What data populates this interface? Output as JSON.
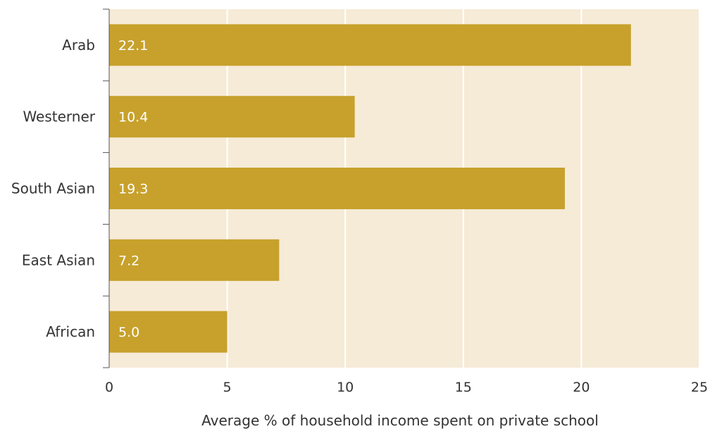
{
  "chart_data": {
    "type": "bar",
    "orientation": "horizontal",
    "categories": [
      "Arab",
      "Westerner",
      "South Asian",
      "East Asian",
      "African"
    ],
    "values": [
      22.1,
      10.4,
      19.3,
      7.2,
      5.0
    ],
    "data_labels": [
      "22.1",
      "10.4",
      "19.3",
      "7.2",
      "5.0"
    ],
    "xlabel": "Average % of household income spent on private school",
    "xlim": [
      0,
      25
    ],
    "xticks": [
      0,
      5,
      10,
      15,
      20,
      25
    ],
    "xtick_labels": [
      "0",
      "5",
      "10",
      "15",
      "20",
      "25"
    ],
    "grid": "vertical",
    "legend": "none",
    "colors": {
      "bar": "#c7a12c",
      "plot_background": "#f6ebd7",
      "gridline": "#ffffff",
      "axis": "#555555"
    }
  }
}
